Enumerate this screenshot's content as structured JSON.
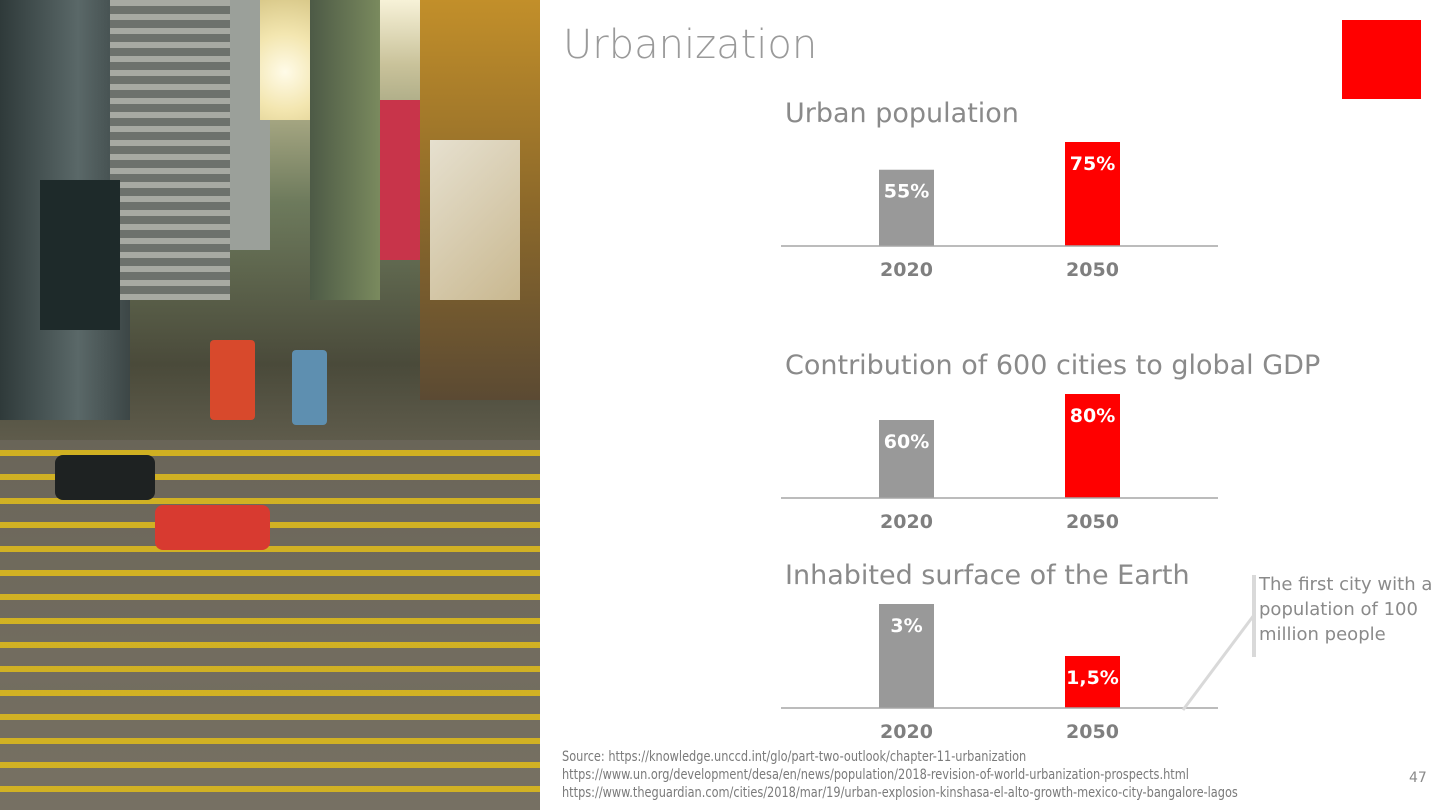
{
  "slide": {
    "title": "Urbanization",
    "accent_color": "#ff0000",
    "gray_color": "#999999",
    "note": "The first city with a population of 100 million people",
    "source_lines": [
      "Source: https://knowledge.unccd.int/glo/part-two-outlook/chapter-11-urbanization",
      "https://www.un.org/development/desa/en/news/population/2018-revision-of-world-urbanization-prospects.html",
      "https://www.theguardian.com/cities/2018/mar/19/urban-explosion-kinshasa-el-alto-growth-mexico-city-bangalore-lagos"
    ],
    "page_number": "47",
    "photo": "city street with yellow road markings, trams and skyscrapers"
  },
  "chart_data": [
    {
      "type": "bar",
      "title": "Urban population",
      "categories": [
        "2020",
        "2050"
      ],
      "values": [
        55,
        75
      ],
      "labels": [
        "55%",
        "75%"
      ],
      "colors": [
        "#999999",
        "#ff0000"
      ],
      "grid": false
    },
    {
      "type": "bar",
      "title": "Contribution of 600 cities to global GDP",
      "categories": [
        "2020",
        "2050"
      ],
      "values": [
        60,
        80
      ],
      "labels": [
        "60%",
        "80%"
      ],
      "colors": [
        "#999999",
        "#ff0000"
      ],
      "grid": false
    },
    {
      "type": "bar",
      "title": "Inhabited surface of the Earth",
      "categories": [
        "2020",
        "2050"
      ],
      "values": [
        3,
        1.5
      ],
      "labels": [
        "3%",
        "1,5%"
      ],
      "colors": [
        "#999999",
        "#ff0000"
      ],
      "grid": false
    }
  ]
}
